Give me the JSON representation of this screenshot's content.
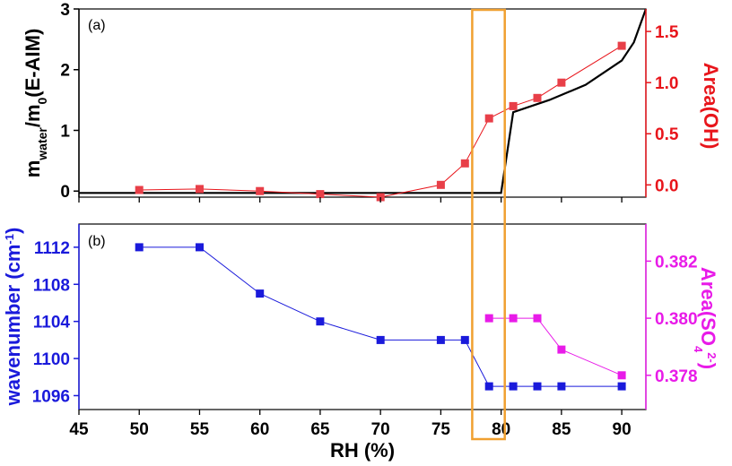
{
  "chart_data": [
    {
      "panel": "a",
      "type": "line",
      "panel_label": "(a)",
      "x_range": [
        45,
        92
      ],
      "y_left": {
        "label_main": "m",
        "label_sub1": "water",
        "label_mid": "/m",
        "label_sub2": "0",
        "label_tail": "(E-AIM)",
        "range": [
          -0.1,
          3
        ],
        "ticks": [
          0,
          1,
          2,
          3
        ],
        "color": "#000000"
      },
      "y_right": {
        "label": "Area(OH)",
        "range": [
          -0.12,
          1.72
        ],
        "ticks": [
          0.0,
          0.5,
          1.0,
          1.5
        ],
        "tick_labels": [
          "0.0",
          "0.5",
          "1.0",
          "1.5"
        ],
        "color": "#e8151b"
      },
      "series": [
        {
          "axis": "left",
          "color": "#000000",
          "style": "line",
          "x": [
            45,
            80,
            81,
            84,
            87,
            90,
            91,
            92
          ],
          "y": [
            -0.03,
            -0.03,
            1.3,
            1.5,
            1.75,
            2.15,
            2.45,
            3.0
          ]
        },
        {
          "axis": "right",
          "color": "#e8151b",
          "marker_color": "#e83f48",
          "style": "line-square",
          "x": [
            50,
            55,
            60,
            65,
            70,
            75,
            77,
            79,
            81,
            83,
            85,
            90
          ],
          "y": [
            -0.05,
            -0.04,
            -0.06,
            -0.09,
            -0.12,
            0.0,
            0.21,
            0.65,
            0.77,
            0.85,
            1.0,
            1.36
          ]
        }
      ]
    },
    {
      "panel": "b",
      "type": "line",
      "panel_label": "(b)",
      "x_range": [
        45,
        92
      ],
      "x_ticks": [
        45,
        50,
        55,
        60,
        65,
        70,
        75,
        80,
        85,
        90
      ],
      "xlabel": "RH (%)",
      "y_left": {
        "label_main": "wavenumber (cm",
        "label_sup": "-1",
        "label_tail": ")",
        "range": [
          1094.5,
          1114.5
        ],
        "ticks": [
          1096,
          1100,
          1104,
          1108,
          1112
        ],
        "color": "#1a1adb"
      },
      "y_right": {
        "label_main": "Area(SO",
        "label_sub": "4",
        "label_sup": "2-",
        "label_tail": ")",
        "range": [
          0.3768,
          0.3833
        ],
        "ticks": [
          0.378,
          0.38,
          0.382
        ],
        "tick_labels": [
          "0.378",
          "0.380",
          "0.382"
        ],
        "color": "#e81be8"
      },
      "series": [
        {
          "axis": "left",
          "color": "#1a1adb",
          "marker_color": "#1a1adb",
          "style": "line-square",
          "x": [
            50,
            55,
            60,
            65,
            70,
            75,
            77,
            79,
            81,
            83,
            85,
            90
          ],
          "y": [
            1112,
            1112,
            1107,
            1104,
            1102,
            1102,
            1102,
            1097,
            1097,
            1097,
            1097,
            1097
          ]
        },
        {
          "axis": "right",
          "color": "#e81be8",
          "marker_color": "#e81be8",
          "style": "line-square",
          "x": [
            79,
            81,
            83,
            85,
            90
          ],
          "y": [
            0.38,
            0.38,
            0.38,
            0.3789,
            0.378
          ]
        }
      ]
    }
  ],
  "highlight_box": {
    "x_range": [
      77.6,
      80.3
    ],
    "color": "#f0a030"
  }
}
